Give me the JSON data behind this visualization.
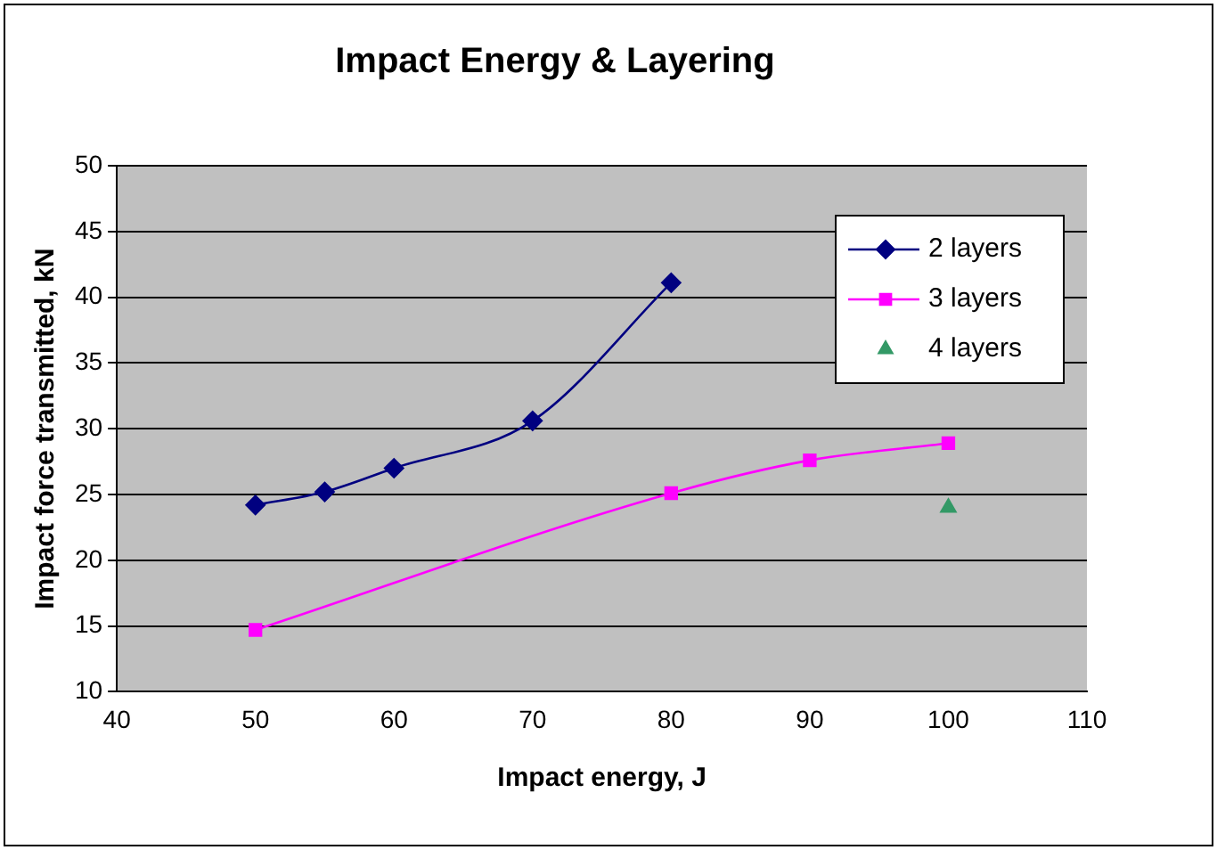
{
  "chart_data": {
    "type": "line",
    "title": "Impact Energy & Layering",
    "xlabel": "Impact energy, J",
    "ylabel": "Impact force transmitted, kN",
    "xlim": [
      40,
      110
    ],
    "xticks": [
      40,
      50,
      60,
      70,
      80,
      90,
      100,
      110
    ],
    "ylim": [
      10,
      50
    ],
    "yticks": [
      10,
      15,
      20,
      25,
      30,
      35,
      40,
      45,
      50
    ],
    "grid": "y",
    "legend": "top right",
    "series": [
      {
        "name": "2 layers",
        "type": "line",
        "color": "#000080",
        "marker": "diamond",
        "x": [
          50,
          55,
          60,
          70,
          80
        ],
        "values": [
          24.2,
          25.2,
          27,
          30.6,
          41.1
        ]
      },
      {
        "name": "3 layers",
        "type": "line",
        "color": "#ff00ff",
        "marker": "square",
        "x": [
          50,
          80,
          90,
          100
        ],
        "values": [
          14.7,
          25.1,
          27.6,
          28.9
        ]
      },
      {
        "name": "4 layers",
        "type": "scatter",
        "color": "#339966",
        "marker": "triangle",
        "x": [
          100
        ],
        "values": [
          24
        ]
      }
    ]
  }
}
